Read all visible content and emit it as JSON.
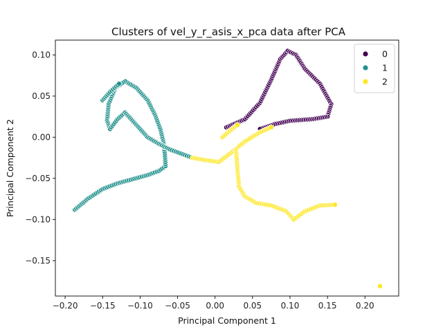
{
  "chart_data": {
    "type": "scatter",
    "title": "Clusters of vel_y_r_asis_x_pca data after PCA",
    "xlabel": "Principal Component 1",
    "ylabel": "Principal Component 2",
    "xlim": [
      -0.213,
      0.245
    ],
    "ylim": [
      -0.193,
      0.118
    ],
    "xticks": [
      -0.2,
      -0.15,
      -0.1,
      -0.05,
      0.0,
      0.05,
      0.1,
      0.15,
      0.2
    ],
    "xtick_labels": [
      "−0.20",
      "−0.15",
      "−0.10",
      "−0.05",
      "0.00",
      "0.05",
      "0.10",
      "0.15",
      "0.20"
    ],
    "yticks": [
      -0.15,
      -0.1,
      -0.05,
      0.0,
      0.05,
      0.1
    ],
    "ytick_labels": [
      "−0.15",
      "−0.10",
      "−0.05",
      "0.00",
      "0.05",
      "0.10"
    ],
    "grid": false,
    "legend": {
      "position": "top-right"
    },
    "series": [
      {
        "name": "0",
        "color": "#440154",
        "paths": [
          [
            [
              0.015,
              0.012
            ],
            [
              0.04,
              0.022
            ],
            [
              0.06,
              0.042
            ],
            [
              0.075,
              0.07
            ],
            [
              0.087,
              0.095
            ],
            [
              0.097,
              0.105
            ],
            [
              0.108,
              0.1
            ],
            [
              0.12,
              0.083
            ],
            [
              0.14,
              0.065
            ],
            [
              0.155,
              0.04
            ],
            [
              0.15,
              0.025
            ],
            [
              0.13,
              0.022
            ],
            [
              0.1,
              0.02
            ],
            [
              0.08,
              0.016
            ],
            [
              0.06,
              0.01
            ]
          ]
        ]
      },
      {
        "name": "1",
        "color": "#21918c",
        "paths": [
          [
            [
              -0.187,
              -0.088
            ],
            [
              -0.17,
              -0.075
            ],
            [
              -0.15,
              -0.063
            ],
            [
              -0.13,
              -0.056
            ],
            [
              -0.11,
              -0.051
            ],
            [
              -0.09,
              -0.046
            ],
            [
              -0.075,
              -0.041
            ],
            [
              -0.066,
              -0.035
            ]
          ],
          [
            [
              -0.066,
              -0.035
            ],
            [
              -0.067,
              -0.02
            ],
            [
              -0.069,
              -0.005
            ],
            [
              -0.073,
              0.01
            ],
            [
              -0.08,
              0.027
            ],
            [
              -0.09,
              0.045
            ],
            [
              -0.105,
              0.06
            ],
            [
              -0.12,
              0.068
            ],
            [
              -0.133,
              0.06
            ],
            [
              -0.142,
              0.04
            ],
            [
              -0.144,
              0.02
            ],
            [
              -0.14,
              0.01
            ],
            [
              -0.13,
              0.022
            ],
            [
              -0.12,
              0.03
            ],
            [
              -0.105,
              0.015
            ],
            [
              -0.09,
              0.0
            ],
            [
              -0.075,
              -0.008
            ],
            [
              -0.06,
              -0.015
            ],
            [
              -0.045,
              -0.02
            ],
            [
              -0.03,
              -0.025
            ]
          ],
          [
            [
              -0.15,
              0.045
            ],
            [
              -0.14,
              0.055
            ],
            [
              -0.128,
              0.065
            ]
          ]
        ]
      },
      {
        "name": "2",
        "color": "#fde725",
        "paths": [
          [
            [
              -0.03,
              -0.025
            ],
            [
              -0.012,
              -0.028
            ],
            [
              0.005,
              -0.03
            ],
            [
              0.02,
              -0.02
            ],
            [
              0.04,
              -0.005
            ],
            [
              0.06,
              0.006
            ],
            [
              0.075,
              0.012
            ]
          ],
          [
            [
              0.01,
              0.0
            ],
            [
              0.02,
              0.008
            ],
            [
              0.03,
              0.015
            ]
          ],
          [
            [
              0.028,
              -0.015
            ],
            [
              0.03,
              -0.04
            ],
            [
              0.032,
              -0.06
            ],
            [
              0.04,
              -0.072
            ],
            [
              0.055,
              -0.08
            ],
            [
              0.075,
              -0.083
            ],
            [
              0.095,
              -0.09
            ],
            [
              0.105,
              -0.1
            ],
            [
              0.12,
              -0.09
            ],
            [
              0.14,
              -0.083
            ],
            [
              0.16,
              -0.082
            ]
          ]
        ],
        "outliers": [
          [
            0.22,
            -0.181
          ]
        ]
      }
    ]
  }
}
